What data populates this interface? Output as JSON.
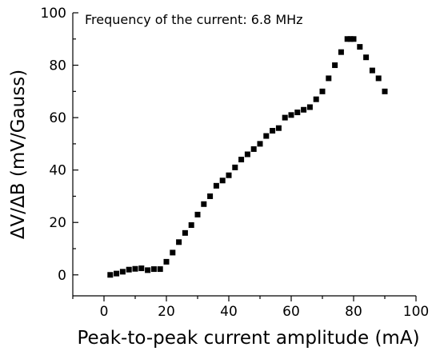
{
  "chart_data": {
    "type": "scatter",
    "title": "",
    "annotation": "Frequency of the current: 6.8 MHz",
    "xlabel": "Peak-to-peak current amplitude (mA)",
    "ylabel": "ΔV/ΔB (mV/Gauss)",
    "xlim": [
      -10,
      100
    ],
    "ylim": [
      -8,
      100
    ],
    "xticks": [
      0,
      20,
      40,
      60,
      80,
      100
    ],
    "yticks": [
      0,
      20,
      40,
      60,
      80,
      100
    ],
    "grid": false,
    "legend": "none",
    "marker": "square",
    "marker_color": "#000000",
    "series": [
      {
        "name": "",
        "x": [
          2,
          4,
          6,
          8,
          10,
          12,
          14,
          16,
          18,
          20,
          22,
          24,
          26,
          28,
          30,
          32,
          34,
          36,
          38,
          40,
          42,
          44,
          46,
          48,
          50,
          52,
          54,
          56,
          58,
          60,
          62,
          64,
          66,
          68,
          70,
          72,
          74,
          76,
          78,
          79,
          80,
          82,
          84,
          86,
          88,
          90
        ],
        "y": [
          0,
          0.5,
          1.2,
          2,
          2.3,
          2.5,
          1.8,
          2.2,
          2.2,
          5,
          8.5,
          12.5,
          16,
          19,
          23,
          27,
          30,
          34,
          36,
          38,
          41,
          44,
          46,
          48,
          50,
          53,
          55,
          56,
          60,
          61,
          62,
          63,
          64,
          67,
          70,
          75,
          80,
          85,
          90,
          90,
          90,
          87,
          83,
          78,
          75,
          70
        ]
      }
    ]
  }
}
